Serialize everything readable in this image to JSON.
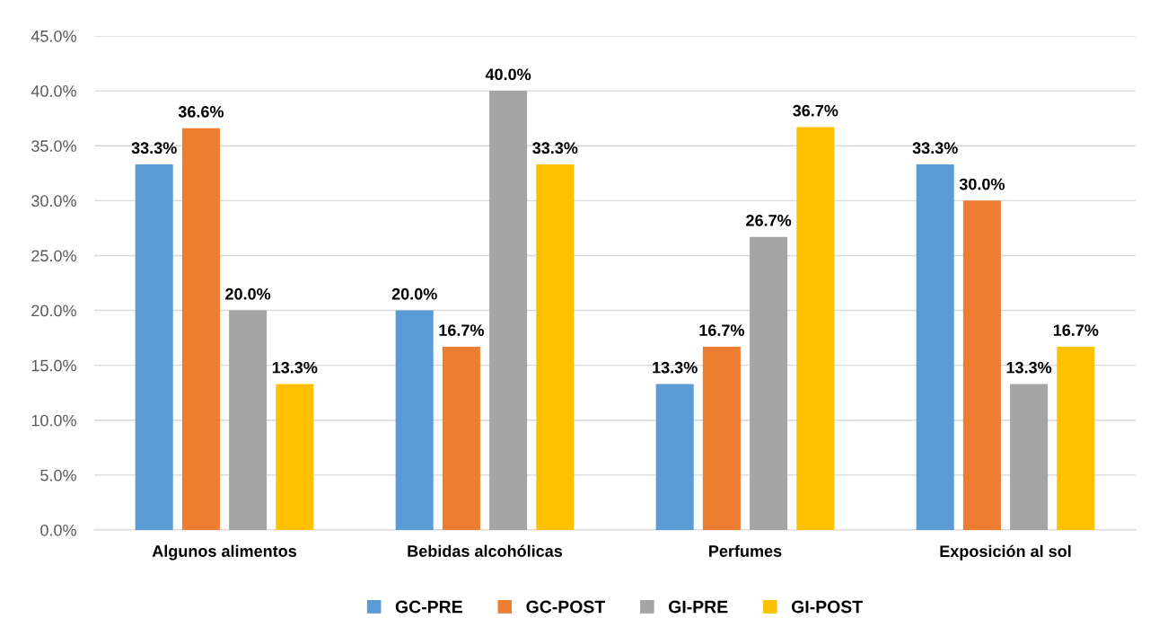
{
  "chart_data": {
    "type": "bar",
    "categories": [
      "Algunos alimentos",
      "Bebidas alcohólicas",
      "Perfumes",
      "Exposición al sol"
    ],
    "series": [
      {
        "name": "GC-PRE",
        "color": "#5b9bd5",
        "values": [
          33.3,
          20.0,
          13.3,
          33.3
        ],
        "value_labels": [
          "33.3%",
          "20.0%",
          "13.3%",
          "33.3%"
        ]
      },
      {
        "name": "GC-POST",
        "color": "#ed7d31",
        "values": [
          36.6,
          16.7,
          16.7,
          30.0
        ],
        "value_labels": [
          "36.6%",
          "16.7%",
          "16.7%",
          "30.0%"
        ]
      },
      {
        "name": "GI-PRE",
        "color": "#a5a5a5",
        "values": [
          20.0,
          40.0,
          26.7,
          13.3
        ],
        "value_labels": [
          "20.0%",
          "40.0%",
          "26.7%",
          "13.3%"
        ]
      },
      {
        "name": "GI-POST",
        "color": "#ffc000",
        "values": [
          13.3,
          33.3,
          36.7,
          16.7
        ],
        "value_labels": [
          "13.3%",
          "33.3%",
          "36.7%",
          "16.7%"
        ]
      }
    ],
    "ylim": [
      0,
      45
    ],
    "yticks": [
      {
        "value": 0,
        "label": "0.0%"
      },
      {
        "value": 5,
        "label": "5.0%"
      },
      {
        "value": 10,
        "label": "10.0%"
      },
      {
        "value": 15,
        "label": "15.0%"
      },
      {
        "value": 20,
        "label": "20.0%"
      },
      {
        "value": 25,
        "label": "25.0%"
      },
      {
        "value": 30,
        "label": "30.0%"
      },
      {
        "value": 35,
        "label": "35.0%"
      },
      {
        "value": 40,
        "label": "40.0%"
      },
      {
        "value": 45,
        "label": "45.0%"
      }
    ],
    "grid": "y",
    "legend": "bottom"
  }
}
